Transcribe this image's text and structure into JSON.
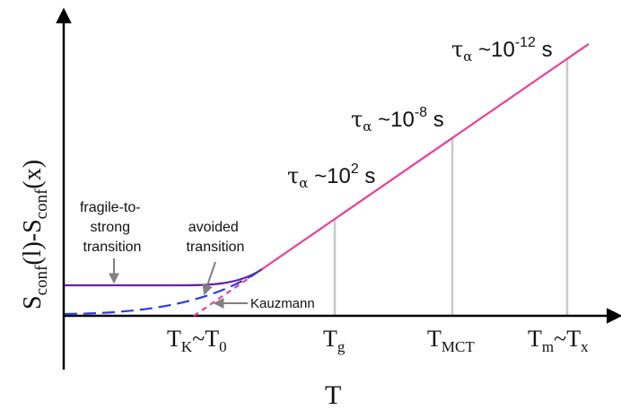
{
  "axes": {
    "y_label": {
      "main1": "S",
      "sub1": "conf",
      "mid": "(l)-S",
      "sub2": "conf",
      "end": "(x)"
    },
    "x_label": "T"
  },
  "tick_labels": {
    "tk": {
      "t1": "T",
      "s1": "K",
      "mid": "~T",
      "s2": "0"
    },
    "tg": {
      "t": "T",
      "s": "g"
    },
    "tmct": {
      "t": "T",
      "s": "MCT"
    },
    "tm": {
      "t1": "T",
      "s1": "m",
      "mid": "~T",
      "s2": "x"
    }
  },
  "annotations": {
    "tau_low": {
      "tau": "τ",
      "alpha": "α",
      "base": " ~10",
      "exp": "2",
      "unit": " s"
    },
    "tau_mid": {
      "tau": "τ",
      "alpha": "α",
      "base": " ~10",
      "exp": "-8",
      "unit": " s"
    },
    "tau_high": {
      "tau": "τ",
      "alpha": "α",
      "base": " ~10",
      "exp": "-12",
      "unit": " s"
    },
    "fragile": {
      "line1": "fragile-to-",
      "line2": "strong",
      "line3": "transition"
    },
    "avoided": {
      "line1": "avoided",
      "line2": "transition"
    },
    "kauzmann": "Kauzmann"
  },
  "colors": {
    "main_line": "#e8409a",
    "fragile_curve": "#6a1fa6",
    "kauzmann_curve": "#2a3fd8",
    "guide_lines": "#c8c8c8",
    "arrow_gray": "#808080",
    "axis": "#000000"
  }
}
